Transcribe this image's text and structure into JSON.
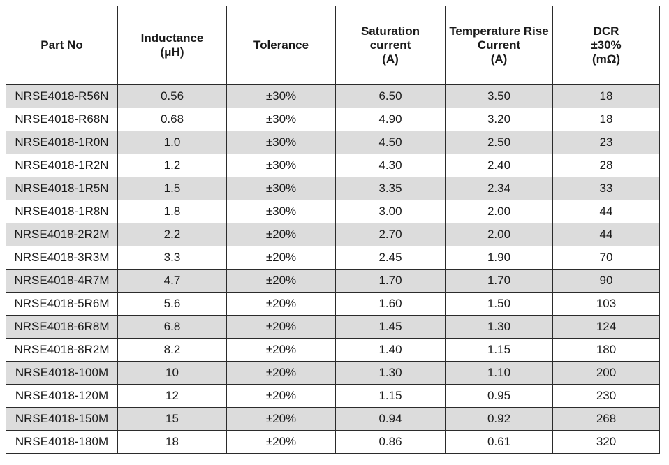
{
  "columns": [
    [
      "Part No"
    ],
    [
      "Inductance",
      "(μH)"
    ],
    [
      "Tolerance"
    ],
    [
      "Saturation",
      "current",
      "(A)"
    ],
    [
      "Temperature Rise",
      "Current",
      "(A)"
    ],
    [
      "DCR",
      "±30%",
      "(mΩ)"
    ]
  ],
  "rows": [
    [
      "NRSE4018-R56N",
      "0.56",
      "±30%",
      "6.50",
      "3.50",
      "18"
    ],
    [
      "NRSE4018-R68N",
      "0.68",
      "±30%",
      "4.90",
      "3.20",
      "18"
    ],
    [
      "NRSE4018-1R0N",
      "1.0",
      "±30%",
      "4.50",
      "2.50",
      "23"
    ],
    [
      "NRSE4018-1R2N",
      "1.2",
      "±30%",
      "4.30",
      "2.40",
      "28"
    ],
    [
      "NRSE4018-1R5N",
      "1.5",
      "±30%",
      "3.35",
      "2.34",
      "33"
    ],
    [
      "NRSE4018-1R8N",
      "1.8",
      "±30%",
      "3.00",
      "2.00",
      "44"
    ],
    [
      "NRSE4018-2R2M",
      "2.2",
      "±20%",
      "2.70",
      "2.00",
      "44"
    ],
    [
      "NRSE4018-3R3M",
      "3.3",
      "±20%",
      "2.45",
      "1.90",
      "70"
    ],
    [
      "NRSE4018-4R7M",
      "4.7",
      "±20%",
      "1.70",
      "1.70",
      "90"
    ],
    [
      "NRSE4018-5R6M",
      "5.6",
      "±20%",
      "1.60",
      "1.50",
      "103"
    ],
    [
      "NRSE4018-6R8M",
      "6.8",
      "±20%",
      "1.45",
      "1.30",
      "124"
    ],
    [
      "NRSE4018-8R2M",
      "8.2",
      "±20%",
      "1.40",
      "1.15",
      "180"
    ],
    [
      "NRSE4018-100M",
      "10",
      "±20%",
      "1.30",
      "1.10",
      "200"
    ],
    [
      "NRSE4018-120M",
      "12",
      "±20%",
      "1.15",
      "0.95",
      "230"
    ],
    [
      "NRSE4018-150M",
      "15",
      "±20%",
      "0.94",
      "0.92",
      "268"
    ],
    [
      "NRSE4018-180M",
      "18",
      "±20%",
      "0.86",
      "0.61",
      "320"
    ]
  ],
  "colors": {
    "shaded_row": "#dcdcdc",
    "plain_row": "#ffffff",
    "border": "#2b2b2b"
  }
}
